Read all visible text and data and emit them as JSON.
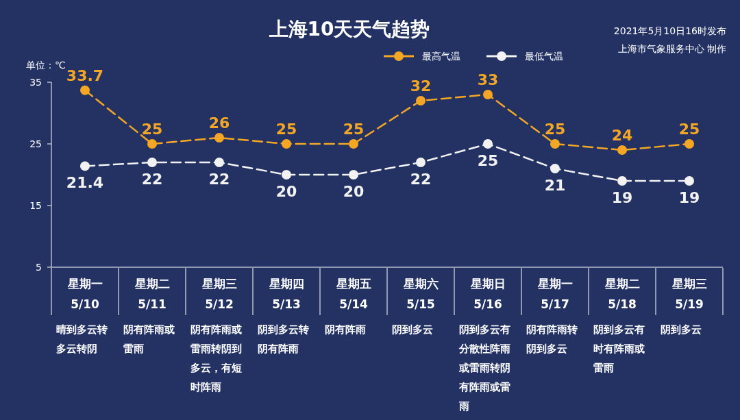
{
  "chart_data": {
    "type": "line",
    "title": "上海10天天气趋势",
    "ylabel": "单位：℃",
    "categories": [
      "星期一\n5/10",
      "星期二\n5/11",
      "星期三\n5/12",
      "星期四\n5/13",
      "星期五\n5/14",
      "星期六\n5/15",
      "星期日\n5/16",
      "星期一\n5/17",
      "星期二\n5/18",
      "星期三\n5/19"
    ],
    "series": [
      {
        "name": "最高气温",
        "color": "#f5a623",
        "values": [
          33.7,
          25,
          26,
          25,
          25,
          32,
          33,
          25,
          24,
          25
        ]
      },
      {
        "name": "最低气温",
        "color": "#f2f2f2",
        "values": [
          21.4,
          22,
          22,
          20,
          20,
          22,
          25,
          21,
          19,
          19
        ]
      }
    ],
    "ylim": [
      5,
      35
    ],
    "yticks": [
      5,
      15,
      25,
      35
    ],
    "grid": false,
    "legend": "top right",
    "marker": "circle",
    "line_style": "dashed",
    "data_labels": true,
    "annotations": [
      "2021年5月10日16时发布",
      "上海市气象服务中心 制作",
      "晴到多云转多云转阴",
      "阴有阵雨或雷雨",
      "阴有阵雨或雷雨转阴到多云，有短时阵雨",
      "阴到多云转阴有阵雨",
      "阴有阵雨",
      "阴到多云",
      "阴到多云有分散性阵雨或雷雨转阴有阵雨或雷雨",
      "阴有阵雨转阴到多云",
      "阴到多云有时有阵雨或雷雨",
      "阴到多云"
    ]
  }
}
